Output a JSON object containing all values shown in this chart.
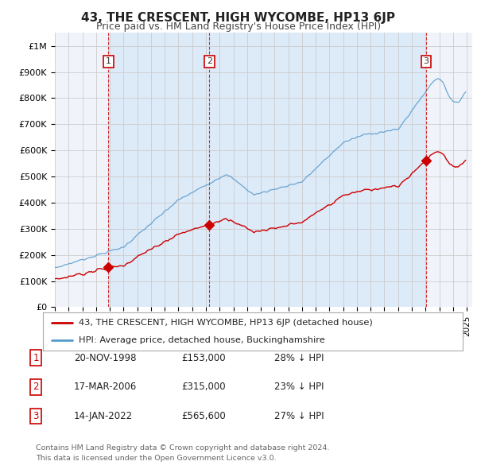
{
  "title": "43, THE CRESCENT, HIGH WYCOMBE, HP13 6JP",
  "subtitle": "Price paid vs. HM Land Registry's House Price Index (HPI)",
  "ylim": [
    0,
    1050000
  ],
  "yticks": [
    0,
    100000,
    200000,
    300000,
    400000,
    500000,
    600000,
    700000,
    800000,
    900000,
    1000000
  ],
  "ytick_labels": [
    "£0",
    "£100K",
    "£200K",
    "£300K",
    "£400K",
    "£500K",
    "£600K",
    "£700K",
    "£800K",
    "£900K",
    "£1M"
  ],
  "background_color": "#ffffff",
  "plot_bg_color": "#f0f4fa",
  "shade_color": "#ddeaf8",
  "grid_color": "#cccccc",
  "hpi_color": "#5599cc",
  "price_color": "#cc0000",
  "sale_marker_color": "#cc0000",
  "sales": [
    {
      "year": 1998.9,
      "price": 153000,
      "label": "1",
      "date_str": "20-NOV-1998",
      "price_str": "£153,000",
      "hpi_str": "28% ↓ HPI"
    },
    {
      "year": 2006.25,
      "price": 315000,
      "label": "2",
      "date_str": "17-MAR-2006",
      "price_str": "£315,000",
      "hpi_str": "23% ↓ HPI"
    },
    {
      "year": 2022.05,
      "price": 565600,
      "label": "3",
      "date_str": "14-JAN-2022",
      "price_str": "£565,600",
      "hpi_str": "27% ↓ HPI"
    }
  ],
  "legend_entries": [
    {
      "label": "43, THE CRESCENT, HIGH WYCOMBE, HP13 6JP (detached house)",
      "color": "#cc0000"
    },
    {
      "label": "HPI: Average price, detached house, Buckinghamshire",
      "color": "#5599cc"
    }
  ],
  "footer": "Contains HM Land Registry data © Crown copyright and database right 2024.\nThis data is licensed under the Open Government Licence v3.0.",
  "title_fontsize": 11,
  "subtitle_fontsize": 9,
  "tick_fontsize": 8
}
